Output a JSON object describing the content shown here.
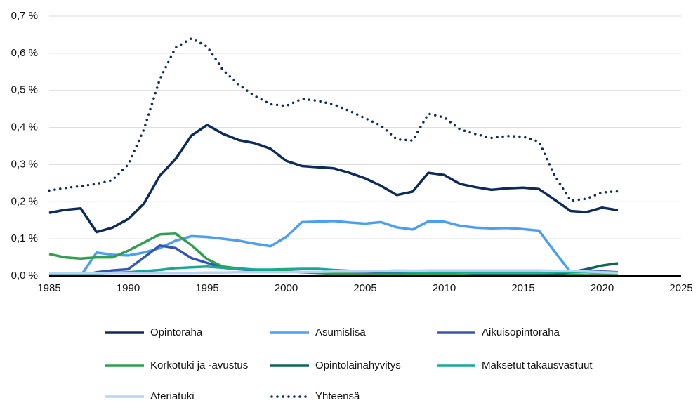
{
  "chart_data": {
    "type": "line",
    "x": [
      1985,
      1986,
      1987,
      1988,
      1989,
      1990,
      1991,
      1992,
      1993,
      1994,
      1995,
      1996,
      1997,
      1998,
      1999,
      2000,
      2001,
      2002,
      2003,
      2004,
      2005,
      2006,
      2007,
      2008,
      2009,
      2010,
      2011,
      2012,
      2013,
      2014,
      2015,
      2016,
      2017,
      2018,
      2019,
      2020,
      2021
    ],
    "series": [
      {
        "name": "Opintoraha",
        "color": "#0c2b5a",
        "style": "solid",
        "values": [
          0.17,
          0.178,
          0.182,
          0.118,
          0.13,
          0.153,
          0.195,
          0.27,
          0.315,
          0.378,
          0.407,
          0.383,
          0.366,
          0.358,
          0.343,
          0.31,
          0.296,
          0.293,
          0.29,
          0.278,
          0.263,
          0.243,
          0.218,
          0.227,
          0.278,
          0.272,
          0.248,
          0.239,
          0.232,
          0.236,
          0.238,
          0.234,
          0.205,
          0.175,
          0.172,
          0.184,
          0.177
        ]
      },
      {
        "name": "Asumislisä",
        "color": "#4a9ff0",
        "style": "solid",
        "values": [
          0,
          0,
          0,
          0.063,
          0.057,
          0.055,
          0.063,
          0.075,
          0.095,
          0.107,
          0.105,
          0.1,
          0.095,
          0.087,
          0.08,
          0.105,
          0.145,
          0.146,
          0.148,
          0.144,
          0.141,
          0.145,
          0.131,
          0.125,
          0.147,
          0.146,
          0.135,
          0.13,
          0.128,
          0.129,
          0.126,
          0.122,
          0.065,
          0.01,
          0.01,
          0.008,
          0.008
        ]
      },
      {
        "name": "Aikuisopintoraha",
        "color": "#3556ad",
        "style": "solid",
        "values": [
          0,
          0,
          0,
          0.01,
          0.015,
          0.018,
          0.05,
          0.082,
          0.075,
          0.048,
          0.035,
          0.022,
          0.018,
          0.015,
          0.015,
          0.012,
          0.011,
          0.01,
          0.01,
          0.01,
          0.01,
          0.01,
          0.01,
          0.01,
          0.01,
          0.01,
          0.01,
          0.01,
          0.01,
          0.01,
          0.01,
          0.01,
          0.01,
          0.012,
          0.015,
          0.012,
          0.01
        ]
      },
      {
        "name": "Korkotuki ja -avustus",
        "color": "#2f9e4f",
        "style": "solid",
        "values": [
          0.059,
          0.05,
          0.047,
          0.05,
          0.05,
          0.068,
          0.09,
          0.112,
          0.114,
          0.083,
          0.045,
          0.025,
          0.02,
          0.017,
          0.015,
          0.012,
          0.01,
          0.008,
          0.006,
          0.005,
          0.004,
          0.004,
          0.004,
          0.004,
          0.004,
          0.004,
          0.003,
          0.003,
          0.003,
          0.003,
          0.003,
          0.003,
          0.003,
          0.003,
          0.002,
          0.002,
          0.002
        ]
      },
      {
        "name": "Opintolainahyvitys",
        "color": "#0b6658",
        "style": "solid",
        "values": [
          0,
          0,
          0,
          0,
          0,
          0,
          0,
          0,
          0,
          0,
          0,
          0,
          0,
          0,
          0,
          0,
          0,
          0,
          0,
          0,
          0,
          0,
          0,
          0,
          0,
          0,
          0,
          0.002,
          0.002,
          0.002,
          0.002,
          0.002,
          0.003,
          0.01,
          0.018,
          0.028,
          0.034
        ]
      },
      {
        "name": "Maksetut takausvastuut",
        "color": "#17a996",
        "style": "solid",
        "values": [
          0.006,
          0.006,
          0.006,
          0.007,
          0.008,
          0.01,
          0.013,
          0.016,
          0.021,
          0.023,
          0.025,
          0.022,
          0.018,
          0.017,
          0.017,
          0.018,
          0.019,
          0.019,
          0.016,
          0.014,
          0.013,
          0.012,
          0.012,
          0.011,
          0.01,
          0.01,
          0.01,
          0.01,
          0.01,
          0.01,
          0.01,
          0.01,
          0.01,
          0.01,
          0.01,
          0.01,
          0.01
        ]
      },
      {
        "name": "Ateriatuki",
        "color": "#b5d3f2",
        "style": "solid",
        "values": [
          0.008,
          0.008,
          0.008,
          0.008,
          0.008,
          0.008,
          0.008,
          0.008,
          0.008,
          0.008,
          0.009,
          0.009,
          0.01,
          0.01,
          0.01,
          0.01,
          0.011,
          0.011,
          0.012,
          0.012,
          0.012,
          0.013,
          0.015,
          0.014,
          0.015,
          0.015,
          0.015,
          0.015,
          0.015,
          0.015,
          0.015,
          0.015,
          0.014,
          0.013,
          0.012,
          0.01,
          0.008
        ]
      },
      {
        "name": "Yhteensä",
        "color": "#0c2b5a",
        "style": "dotted",
        "values": [
          0.23,
          0.237,
          0.242,
          0.248,
          0.258,
          0.3,
          0.395,
          0.53,
          0.615,
          0.64,
          0.618,
          0.555,
          0.515,
          0.485,
          0.463,
          0.458,
          0.477,
          0.472,
          0.462,
          0.445,
          0.425,
          0.405,
          0.368,
          0.365,
          0.437,
          0.427,
          0.395,
          0.382,
          0.372,
          0.377,
          0.375,
          0.362,
          0.27,
          0.203,
          0.208,
          0.225,
          0.228
        ]
      }
    ],
    "xlim": [
      1985,
      2025
    ],
    "xticks": [
      1985,
      1990,
      1995,
      2000,
      2005,
      2010,
      2015,
      2020,
      2025
    ],
    "ylim": [
      0,
      0.7
    ],
    "yticks": [
      {
        "value": 0,
        "label": "0,0 %"
      },
      {
        "value": 0.1,
        "label": "0,1 %"
      },
      {
        "value": 0.2,
        "label": "0,2 %"
      },
      {
        "value": 0.3,
        "label": "0,3 %"
      },
      {
        "value": 0.4,
        "label": "0,4 %"
      },
      {
        "value": 0.5,
        "label": "0,5 %"
      },
      {
        "value": 0.6,
        "label": "0,6 %"
      },
      {
        "value": 0.7,
        "label": "0,7 %"
      }
    ],
    "grid": true,
    "legend": "bottom"
  }
}
